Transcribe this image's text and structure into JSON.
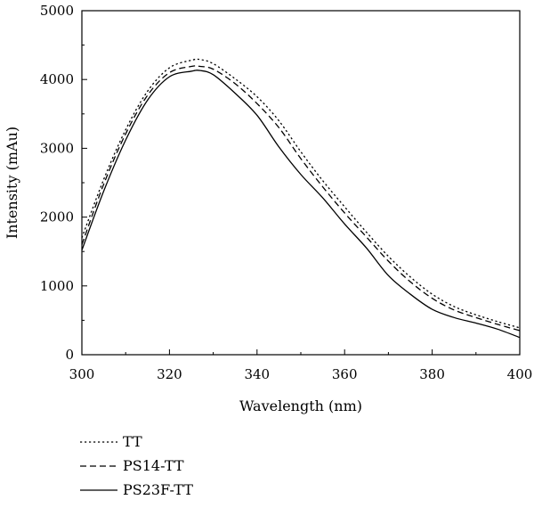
{
  "chart_data": {
    "type": "line",
    "xlabel": "Wavelength (nm)",
    "ylabel": "Intensity (mAu)",
    "xlim": [
      300,
      400
    ],
    "ylim": [
      0,
      5000
    ],
    "x_ticks": [
      300,
      320,
      340,
      360,
      380,
      400
    ],
    "y_ticks": [
      0,
      1000,
      2000,
      3000,
      4000,
      5000
    ],
    "grid": false,
    "legend_position": "bottom-left, below plot",
    "x": [
      300,
      305,
      310,
      315,
      320,
      325,
      327,
      330,
      335,
      340,
      345,
      350,
      355,
      360,
      365,
      370,
      375,
      380,
      385,
      390,
      395,
      400
    ],
    "series": [
      {
        "name": "TT",
        "dash": "dotted",
        "values": [
          1700,
          2550,
          3270,
          3830,
          4170,
          4280,
          4290,
          4230,
          4010,
          3750,
          3400,
          2950,
          2530,
          2150,
          1780,
          1430,
          1130,
          880,
          700,
          580,
          480,
          390
        ]
      },
      {
        "name": "PS14-TT",
        "dash": "dashed",
        "values": [
          1600,
          2480,
          3210,
          3770,
          4100,
          4190,
          4190,
          4150,
          3940,
          3650,
          3300,
          2850,
          2440,
          2060,
          1710,
          1360,
          1060,
          820,
          650,
          540,
          440,
          350
        ]
      },
      {
        "name": "PS23F-TT",
        "dash": "solid",
        "values": [
          1520,
          2380,
          3120,
          3700,
          4040,
          4120,
          4130,
          4070,
          3800,
          3480,
          3020,
          2620,
          2280,
          1900,
          1550,
          1150,
          880,
          660,
          540,
          460,
          370,
          250
        ]
      }
    ]
  }
}
